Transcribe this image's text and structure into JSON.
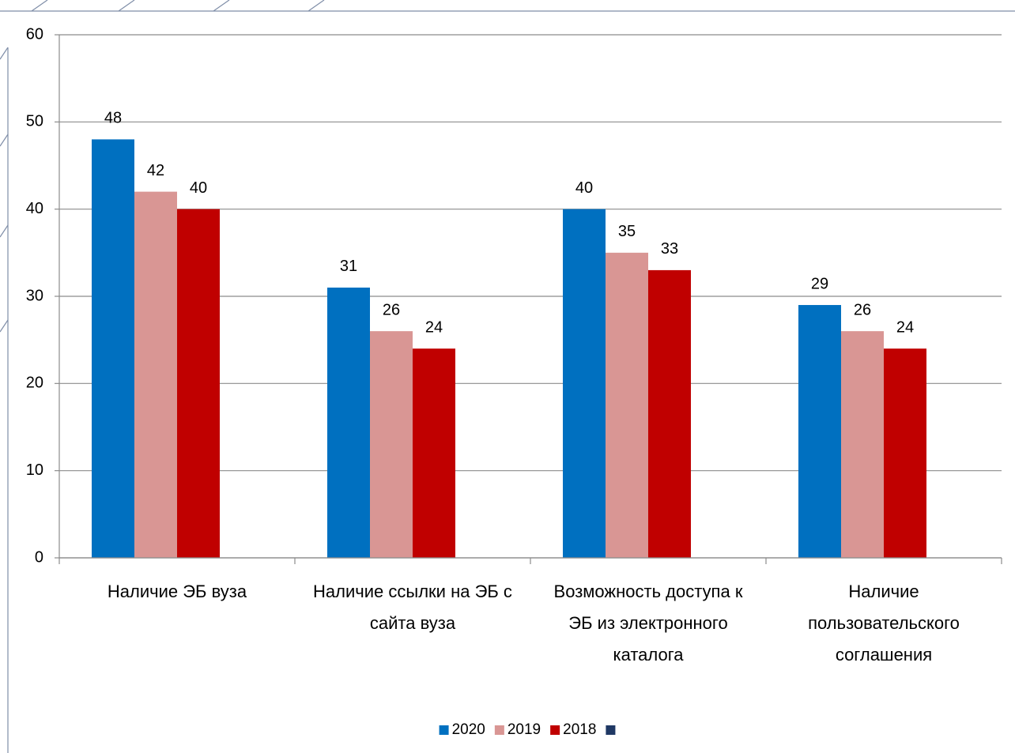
{
  "chart_data": {
    "type": "bar",
    "categories": [
      "Наличие ЭБ вуза",
      "Наличие ссылки на ЭБ с сайта вуза",
      "Возможность доступа к ЭБ из электронного каталога",
      "Наличие пользовательского соглашения"
    ],
    "series": [
      {
        "name": "2020",
        "color": "#0070c0",
        "values": [
          48,
          31,
          40,
          29
        ]
      },
      {
        "name": "2019",
        "color": "#d99694",
        "values": [
          42,
          26,
          35,
          26
        ]
      },
      {
        "name": "2018",
        "color": "#c00000",
        "values": [
          40,
          24,
          33,
          24
        ]
      },
      {
        "color": "#1f3864",
        "values": [
          null,
          null,
          null,
          null
        ]
      }
    ],
    "ylim": [
      0,
      60
    ],
    "yticks": [
      0,
      10,
      20,
      30,
      40,
      50,
      60
    ],
    "grid": true,
    "legend": "bottom",
    "data_labels": true
  }
}
